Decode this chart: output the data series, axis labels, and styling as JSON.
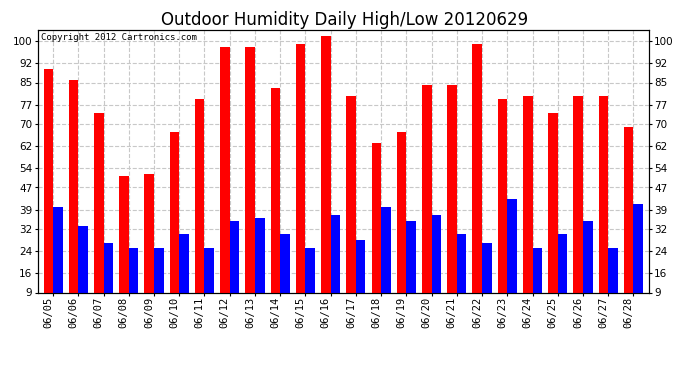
{
  "title": "Outdoor Humidity Daily High/Low 20120629",
  "copyright": "Copyright 2012 Cartronics.com",
  "dates": [
    "06/05",
    "06/06",
    "06/07",
    "06/08",
    "06/09",
    "06/10",
    "06/11",
    "06/12",
    "06/13",
    "06/14",
    "06/15",
    "06/16",
    "06/17",
    "06/18",
    "06/19",
    "06/20",
    "06/21",
    "06/22",
    "06/23",
    "06/24",
    "06/25",
    "06/26",
    "06/27",
    "06/28"
  ],
  "high": [
    90,
    86,
    74,
    51,
    52,
    67,
    79,
    98,
    98,
    83,
    99,
    102,
    80,
    63,
    67,
    84,
    84,
    99,
    79,
    80,
    74,
    80,
    80,
    69
  ],
  "low": [
    40,
    33,
    27,
    25,
    25,
    30,
    25,
    35,
    36,
    30,
    25,
    37,
    28,
    40,
    35,
    37,
    30,
    27,
    43,
    25,
    30,
    35,
    25,
    41
  ],
  "high_color": "#ff0000",
  "low_color": "#0000ff",
  "bg_color": "#ffffff",
  "grid_color": "#c8c8c8",
  "yticks": [
    9,
    16,
    24,
    32,
    39,
    47,
    54,
    62,
    70,
    77,
    85,
    92,
    100
  ],
  "ymin": 9,
  "ymax": 104,
  "bar_width": 0.38,
  "title_fontsize": 12,
  "tick_fontsize": 7.5,
  "copyright_fontsize": 6.5
}
